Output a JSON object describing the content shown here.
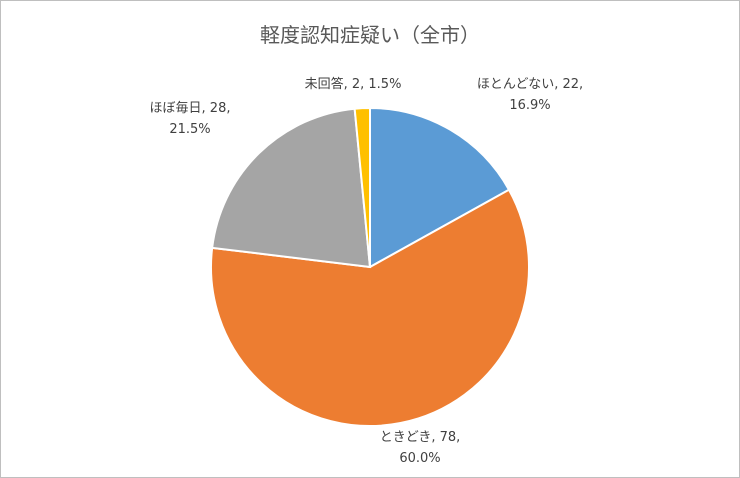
{
  "chart_data": {
    "type": "pie",
    "title": "軽度認知症疑い（全市）",
    "categories": [
      "ほとんどない",
      "ときどき",
      "ほぼ毎日",
      "未回答"
    ],
    "values": [
      22,
      78,
      28,
      2
    ],
    "percent_labels": [
      "16.9%",
      "60.0%",
      "21.5%",
      "1.5%"
    ],
    "label_separator": ", ",
    "colors": [
      "#5b9bd5",
      "#ed7d31",
      "#a5a5a5",
      "#ffc000"
    ]
  }
}
